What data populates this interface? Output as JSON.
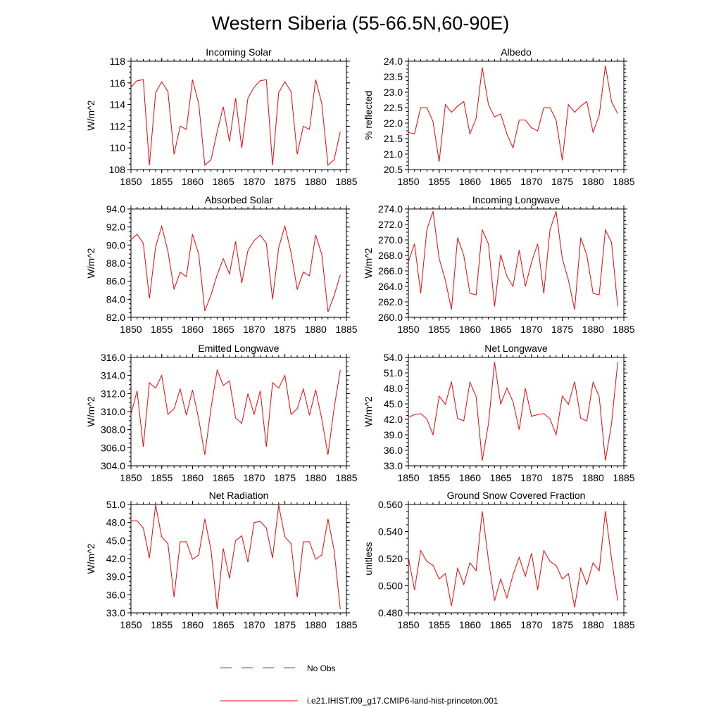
{
  "title": "Western Siberia (55-66.5N,60-90E)",
  "colors": {
    "model": "#ff0000",
    "obs": "#4a4ad8",
    "axis": "#000000"
  },
  "legend": {
    "obs_label": "No Obs",
    "model_label": "i.e21.IHIST.f09_g17.CMIP6-land-hist-princeton.001"
  },
  "chart_data": [
    {
      "type": "line",
      "title": "Incoming Solar",
      "ylabel": "W/m^2",
      "xlim": [
        1850,
        1885
      ],
      "xticks": [
        "1850",
        "1855",
        "1860",
        "1865",
        "1870",
        "1875",
        "1880",
        "1885"
      ],
      "ylim": [
        108,
        118
      ],
      "yticks": [
        "108",
        "110",
        "112",
        "114",
        "116",
        "118"
      ],
      "x": [
        1850,
        1851,
        1852,
        1853,
        1854,
        1855,
        1856,
        1857,
        1858,
        1859,
        1860,
        1861,
        1862,
        1863,
        1864,
        1865,
        1866,
        1867,
        1868,
        1869,
        1870,
        1871,
        1872,
        1873,
        1874,
        1875,
        1876,
        1877,
        1878,
        1879,
        1880,
        1881,
        1882,
        1883,
        1884
      ],
      "values": [
        115.6,
        116.2,
        116.3,
        108.4,
        115.1,
        116.1,
        115.2,
        109.4,
        112.0,
        111.7,
        116.3,
        114.1,
        108.4,
        108.9,
        111.5,
        113.8,
        110.6,
        114.6,
        110.0,
        114.6,
        115.6,
        116.2,
        116.3,
        108.4,
        115.1,
        116.1,
        115.2,
        109.4,
        112.0,
        111.7,
        116.3,
        114.1,
        108.4,
        108.9,
        111.5
      ]
    },
    {
      "type": "line",
      "title": "Albedo",
      "ylabel": "% reflected",
      "xlim": [
        1850,
        1885
      ],
      "xticks": [
        "1850",
        "1855",
        "1860",
        "1865",
        "1870",
        "1875",
        "1880",
        "1885"
      ],
      "ylim": [
        20.5,
        24.0
      ],
      "yticks": [
        "20.5",
        "21.0",
        "21.5",
        "22.0",
        "22.5",
        "23.0",
        "23.5",
        "24.0"
      ],
      "x": [
        1850,
        1851,
        1852,
        1853,
        1854,
        1855,
        1856,
        1857,
        1858,
        1859,
        1860,
        1861,
        1862,
        1863,
        1864,
        1865,
        1866,
        1867,
        1868,
        1869,
        1870,
        1871,
        1872,
        1873,
        1874,
        1875,
        1876,
        1877,
        1878,
        1879,
        1880,
        1881,
        1882,
        1883,
        1884
      ],
      "values": [
        21.7,
        21.65,
        22.5,
        22.5,
        22.05,
        20.75,
        22.6,
        22.35,
        22.55,
        22.7,
        21.65,
        22.15,
        23.8,
        22.6,
        22.2,
        22.3,
        21.65,
        21.2,
        22.1,
        22.1,
        21.85,
        21.75,
        22.5,
        22.5,
        22.1,
        20.8,
        22.6,
        22.35,
        22.55,
        22.7,
        21.7,
        22.25,
        23.85,
        22.7,
        22.3
      ]
    },
    {
      "type": "line",
      "title": "Absorbed Solar",
      "ylabel": "W/m^2",
      "xlim": [
        1850,
        1885
      ],
      "xticks": [
        "1850",
        "1855",
        "1860",
        "1865",
        "1870",
        "1875",
        "1880",
        "1885"
      ],
      "ylim": [
        82.0,
        94.0
      ],
      "yticks": [
        "82.0",
        "84.0",
        "86.0",
        "88.0",
        "90.0",
        "92.0",
        "94.0"
      ],
      "x": [
        1850,
        1851,
        1852,
        1853,
        1854,
        1855,
        1856,
        1857,
        1858,
        1859,
        1860,
        1861,
        1862,
        1863,
        1864,
        1865,
        1866,
        1867,
        1868,
        1869,
        1870,
        1871,
        1872,
        1873,
        1874,
        1875,
        1876,
        1877,
        1878,
        1879,
        1880,
        1881,
        1882,
        1883,
        1884
      ],
      "values": [
        90.6,
        91.2,
        90.2,
        84.1,
        89.8,
        92.1,
        89.3,
        85.1,
        87.0,
        86.5,
        91.2,
        89.0,
        82.7,
        84.5,
        86.7,
        88.5,
        86.8,
        90.4,
        85.8,
        89.4,
        90.5,
        91.1,
        90.2,
        84.0,
        89.7,
        92.1,
        89.2,
        85.1,
        87.0,
        86.6,
        91.1,
        89.0,
        82.6,
        84.4,
        86.7
      ]
    },
    {
      "type": "line",
      "title": "Incoming Longwave",
      "ylabel": "W/m^2",
      "xlim": [
        1850,
        1885
      ],
      "xticks": [
        "1850",
        "1855",
        "1860",
        "1865",
        "1870",
        "1875",
        "1880",
        "1885"
      ],
      "ylim": [
        260.0,
        274.0
      ],
      "yticks": [
        "260.0",
        "262.0",
        "264.0",
        "266.0",
        "268.0",
        "270.0",
        "272.0",
        "274.0"
      ],
      "x": [
        1850,
        1851,
        1852,
        1853,
        1854,
        1855,
        1856,
        1857,
        1858,
        1859,
        1860,
        1861,
        1862,
        1863,
        1864,
        1865,
        1866,
        1867,
        1868,
        1869,
        1870,
        1871,
        1872,
        1873,
        1874,
        1875,
        1876,
        1877,
        1878,
        1879,
        1880,
        1881,
        1882,
        1883,
        1884
      ],
      "values": [
        267.2,
        269.5,
        263.1,
        271.3,
        273.7,
        267.6,
        264.8,
        261.0,
        270.3,
        268.0,
        263.1,
        262.9,
        271.3,
        269.5,
        261.4,
        268.1,
        265.3,
        264.0,
        268.7,
        264.0,
        267.1,
        269.5,
        263.1,
        271.3,
        273.7,
        267.6,
        264.8,
        261.0,
        270.3,
        268.0,
        263.1,
        262.9,
        271.3,
        269.7,
        261.4
      ]
    },
    {
      "type": "line",
      "title": "Emitted Longwave",
      "ylabel": "W/m^2",
      "xlim": [
        1850,
        1885
      ],
      "xticks": [
        "1850",
        "1855",
        "1860",
        "1865",
        "1870",
        "1875",
        "1880",
        "1885"
      ],
      "ylim": [
        304.0,
        316.0
      ],
      "yticks": [
        "304.0",
        "306.0",
        "308.0",
        "310.0",
        "312.0",
        "314.0",
        "316.0"
      ],
      "x": [
        1850,
        1851,
        1852,
        1853,
        1854,
        1855,
        1856,
        1857,
        1858,
        1859,
        1860,
        1861,
        1862,
        1863,
        1864,
        1865,
        1866,
        1867,
        1868,
        1869,
        1870,
        1871,
        1872,
        1873,
        1874,
        1875,
        1876,
        1877,
        1878,
        1879,
        1880,
        1881,
        1882,
        1883,
        1884
      ],
      "values": [
        309.7,
        312.3,
        306.1,
        313.2,
        312.6,
        314.0,
        309.7,
        310.3,
        312.5,
        309.6,
        312.4,
        309.2,
        305.2,
        310.4,
        314.6,
        312.9,
        313.4,
        309.3,
        308.7,
        312.0,
        309.7,
        312.3,
        306.1,
        313.2,
        312.6,
        314.0,
        309.7,
        310.3,
        312.5,
        309.6,
        312.4,
        309.2,
        305.2,
        310.4,
        314.6
      ]
    },
    {
      "type": "line",
      "title": "Net Longwave",
      "ylabel": "W/m^2",
      "xlim": [
        1850,
        1885
      ],
      "xticks": [
        "1850",
        "1855",
        "1860",
        "1865",
        "1870",
        "1875",
        "1880",
        "1885"
      ],
      "ylim": [
        33.0,
        54.0
      ],
      "yticks": [
        "33.0",
        "36.0",
        "39.0",
        "42.0",
        "45.0",
        "48.0",
        "51.0",
        "54.0"
      ],
      "x": [
        1850,
        1851,
        1852,
        1853,
        1854,
        1855,
        1856,
        1857,
        1858,
        1859,
        1860,
        1861,
        1862,
        1863,
        1864,
        1865,
        1866,
        1867,
        1868,
        1869,
        1870,
        1871,
        1872,
        1873,
        1874,
        1875,
        1876,
        1877,
        1878,
        1879,
        1880,
        1881,
        1882,
        1883,
        1884
      ],
      "values": [
        42.4,
        42.9,
        43.1,
        42.1,
        39.0,
        46.5,
        44.9,
        49.3,
        42.2,
        41.7,
        49.2,
        46.4,
        34.0,
        41.1,
        53.1,
        44.9,
        48.1,
        45.4,
        40.0,
        48.0,
        42.6,
        42.9,
        43.1,
        42.1,
        39.0,
        46.5,
        44.9,
        49.3,
        42.2,
        41.7,
        49.2,
        46.4,
        34.0,
        41.1,
        53.1
      ]
    },
    {
      "type": "line",
      "title": "Net Radiation",
      "ylabel": "W/m^2",
      "xlim": [
        1850,
        1885
      ],
      "xticks": [
        "1850",
        "1855",
        "1860",
        "1865",
        "1870",
        "1875",
        "1880",
        "1885"
      ],
      "ylim": [
        33.0,
        51.0
      ],
      "yticks": [
        "33.0",
        "36.0",
        "39.0",
        "42.0",
        "45.0",
        "48.0",
        "51.0"
      ],
      "x": [
        1850,
        1851,
        1852,
        1853,
        1854,
        1855,
        1856,
        1857,
        1858,
        1859,
        1860,
        1861,
        1862,
        1863,
        1864,
        1865,
        1866,
        1867,
        1868,
        1869,
        1870,
        1871,
        1872,
        1873,
        1874,
        1875,
        1876,
        1877,
        1878,
        1879,
        1880,
        1881,
        1882,
        1883,
        1884
      ],
      "values": [
        48.3,
        48.3,
        47.1,
        42.1,
        50.9,
        45.6,
        44.5,
        35.6,
        44.8,
        44.8,
        41.9,
        42.6,
        48.6,
        43.4,
        33.6,
        43.7,
        38.7,
        45.0,
        45.8,
        41.4,
        48.0,
        48.2,
        47.1,
        42.1,
        50.9,
        45.6,
        44.5,
        35.6,
        44.8,
        44.8,
        41.9,
        42.6,
        48.6,
        43.4,
        33.6
      ]
    },
    {
      "type": "line",
      "title": "Ground Snow Covered Fraction",
      "ylabel": "unitless",
      "xlim": [
        1850,
        1885
      ],
      "xticks": [
        "1850",
        "1855",
        "1860",
        "1865",
        "1870",
        "1875",
        "1880",
        "1885"
      ],
      "ylim": [
        0.48,
        0.56
      ],
      "yticks": [
        "0.480",
        "0.500",
        "0.520",
        "0.540",
        "0.560"
      ],
      "x": [
        1850,
        1851,
        1852,
        1853,
        1854,
        1855,
        1856,
        1857,
        1858,
        1859,
        1860,
        1861,
        1862,
        1863,
        1864,
        1865,
        1866,
        1867,
        1868,
        1869,
        1870,
        1871,
        1872,
        1873,
        1874,
        1875,
        1876,
        1877,
        1878,
        1879,
        1880,
        1881,
        1882,
        1883,
        1884
      ],
      "values": [
        0.521,
        0.497,
        0.526,
        0.518,
        0.515,
        0.505,
        0.509,
        0.485,
        0.513,
        0.501,
        0.517,
        0.511,
        0.555,
        0.519,
        0.489,
        0.505,
        0.491,
        0.508,
        0.521,
        0.507,
        0.524,
        0.497,
        0.526,
        0.518,
        0.515,
        0.505,
        0.509,
        0.484,
        0.513,
        0.501,
        0.517,
        0.511,
        0.555,
        0.52,
        0.489
      ]
    }
  ]
}
